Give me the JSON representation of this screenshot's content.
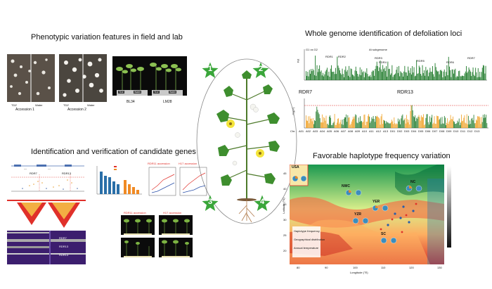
{
  "panels": {
    "phenotype": {
      "title": "Phenotypic variation features in field and lab",
      "accession1": "Accession 1",
      "accession2": "Accession 2",
      "tdz": "TDZ",
      "water": "Water",
      "bl34": "BL34",
      "lm28": "LM28"
    },
    "genome": {
      "title": "Whole genome identification of defoliation loci",
      "comparison": "G1 vs G2",
      "subgenome": "At subgenome",
      "fst_label": "Fst",
      "logp_label": "-log(P)",
      "rdr7": "RDR7",
      "rdr13": "RDR13",
      "peaks": [
        "RDR1",
        "RDR2",
        "RDR3",
        "RDR4",
        "RDR5",
        "RDR6",
        "RDR7"
      ],
      "chromosomes": [
        "Chr.",
        "A01",
        "A02",
        "A03",
        "A04",
        "A05",
        "A06",
        "A07",
        "A08",
        "A09",
        "A10",
        "A11",
        "A12",
        "A13",
        "D01",
        "D02",
        "D03",
        "D04",
        "D05",
        "D06",
        "D07",
        "D08",
        "D09",
        "D10",
        "D11",
        "D12",
        "D13"
      ]
    },
    "candidates": {
      "title": "Identification and verification of candidate genes",
      "rdr11": "RDR11 accession",
      "h17": "H17 accession",
      "dashes": "---",
      "gene_labels": [
        "RDR7",
        "RDR13",
        "RDR13"
      ]
    },
    "haplotype": {
      "title": "Favorable haplotype frequency variation",
      "regions": [
        "USA",
        "NWC",
        "NC",
        "YER",
        "YZR",
        "SC"
      ],
      "latitude": "Latitude (°N)",
      "longitude": "Longitude (°E)",
      "lon_ticks": [
        "80",
        "90",
        "100",
        "110",
        "120",
        "130"
      ],
      "lat_ticks": [
        "20",
        "25",
        "30",
        "35",
        "40",
        "45"
      ],
      "legend_line1": "Haplotype frequency",
      "legend_line2": "Geographical distribution",
      "legend_line3": "Annual temperature"
    }
  },
  "center": {
    "steps": [
      "1",
      "2",
      "3",
      "4"
    ]
  },
  "colors": {
    "star": "#3aa63a",
    "green_bar": "#1e7a2a",
    "orange_bar": "#f0a020",
    "red_line": "#e0302a"
  }
}
